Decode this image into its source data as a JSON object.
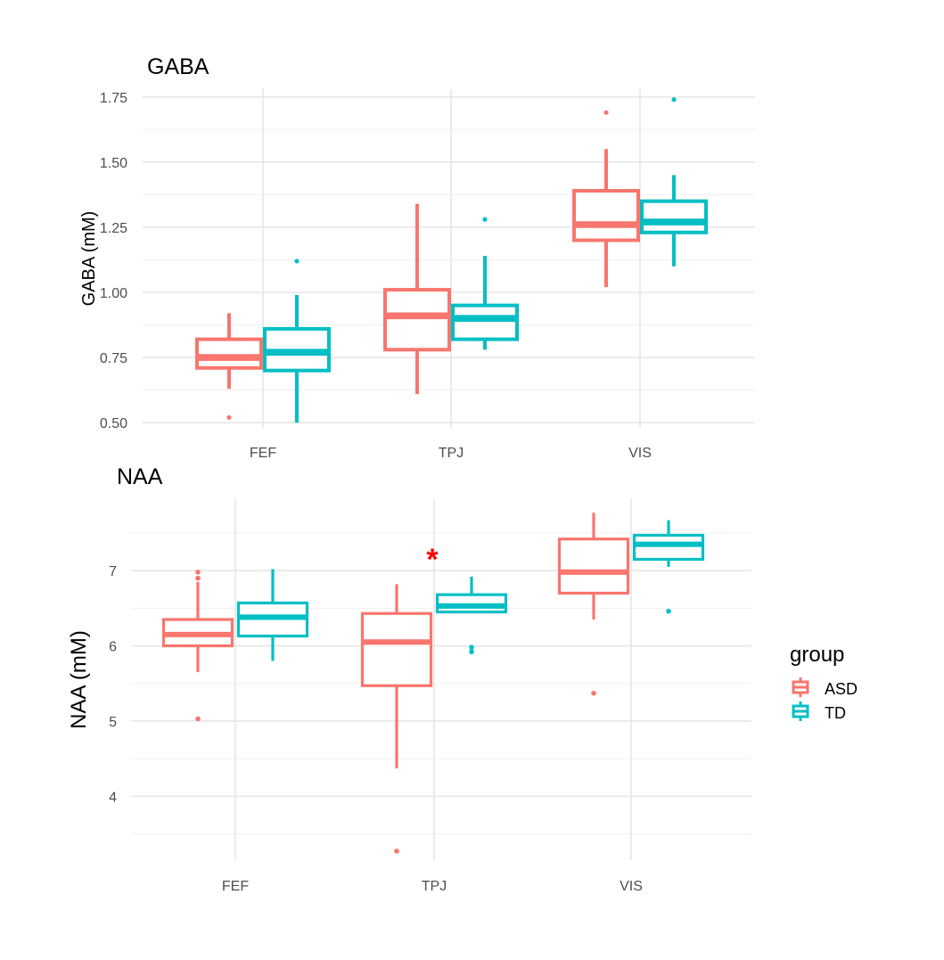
{
  "chart_data": [
    {
      "type": "box",
      "title": "GABA",
      "xlabel": "",
      "ylabel": "GABA (mM)",
      "categories": [
        "FEF",
        "TPJ",
        "VIS"
      ],
      "ylim": [
        0.48,
        1.78
      ],
      "yticks": [
        0.5,
        0.75,
        1.0,
        1.25,
        1.5,
        1.75
      ],
      "ytick_labels": [
        "0.50",
        "0.75",
        "1.00",
        "1.25",
        "1.50",
        "1.75"
      ],
      "series": [
        {
          "name": "ASD",
          "boxes": [
            {
              "category": "FEF",
              "whisker_low": 0.63,
              "q1": 0.71,
              "median": 0.75,
              "q3": 0.82,
              "whisker_high": 0.92,
              "outliers": [
                0.52
              ]
            },
            {
              "category": "TPJ",
              "whisker_low": 0.61,
              "q1": 0.78,
              "median": 0.91,
              "q3": 1.01,
              "whisker_high": 1.34,
              "outliers": []
            },
            {
              "category": "VIS",
              "whisker_low": 1.02,
              "q1": 1.2,
              "median": 1.26,
              "q3": 1.39,
              "whisker_high": 1.55,
              "outliers": [
                1.69
              ]
            }
          ]
        },
        {
          "name": "TD",
          "boxes": [
            {
              "category": "FEF",
              "whisker_low": 0.5,
              "q1": 0.7,
              "median": 0.77,
              "q3": 0.86,
              "whisker_high": 0.99,
              "outliers": [
                1.12
              ]
            },
            {
              "category": "TPJ",
              "whisker_low": 0.78,
              "q1": 0.82,
              "median": 0.9,
              "q3": 0.95,
              "whisker_high": 1.14,
              "outliers": [
                1.28
              ]
            },
            {
              "category": "VIS",
              "whisker_low": 1.1,
              "q1": 1.23,
              "median": 1.27,
              "q3": 1.35,
              "whisker_high": 1.45,
              "outliers": [
                1.74
              ]
            }
          ]
        }
      ],
      "annotations": []
    },
    {
      "type": "box",
      "title": "NAA",
      "xlabel": "",
      "ylabel": "NAA (mM)",
      "categories": [
        "FEF",
        "TPJ",
        "VIS"
      ],
      "ylim": [
        3.15,
        7.95
      ],
      "yticks": [
        4,
        5,
        6,
        7
      ],
      "ytick_labels": [
        "4",
        "5",
        "6",
        "7"
      ],
      "series": [
        {
          "name": "ASD",
          "boxes": [
            {
              "category": "FEF",
              "whisker_low": 5.65,
              "q1": 6.0,
              "median": 6.15,
              "q3": 6.35,
              "whisker_high": 6.85,
              "outliers": [
                6.9,
                6.98,
                5.03
              ]
            },
            {
              "category": "TPJ",
              "whisker_low": 4.37,
              "q1": 5.47,
              "median": 6.05,
              "q3": 6.43,
              "whisker_high": 6.82,
              "outliers": [
                3.27
              ]
            },
            {
              "category": "VIS",
              "whisker_low": 6.35,
              "q1": 6.7,
              "median": 6.98,
              "q3": 7.42,
              "whisker_high": 7.77,
              "outliers": [
                5.37
              ]
            }
          ]
        },
        {
          "name": "TD",
          "boxes": [
            {
              "category": "FEF",
              "whisker_low": 5.8,
              "q1": 6.13,
              "median": 6.38,
              "q3": 6.57,
              "whisker_high": 7.02,
              "outliers": []
            },
            {
              "category": "TPJ",
              "whisker_low": 6.45,
              "q1": 6.45,
              "median": 6.53,
              "q3": 6.68,
              "whisker_high": 6.92,
              "outliers": [
                5.92,
                5.98
              ]
            },
            {
              "category": "VIS",
              "whisker_low": 7.05,
              "q1": 7.15,
              "median": 7.35,
              "q3": 7.47,
              "whisker_high": 7.67,
              "outliers": [
                6.46
              ]
            }
          ]
        }
      ],
      "annotations": [
        {
          "text": "*",
          "category": "TPJ",
          "y": 7.25,
          "color": "#ff0000"
        }
      ]
    }
  ],
  "legend": {
    "title": "group",
    "items": [
      {
        "label": "ASD",
        "color": "#f8766d"
      },
      {
        "label": "TD",
        "color": "#00bfc4"
      }
    ]
  },
  "colors": {
    "ASD": "#f8766d",
    "TD": "#00bfc4",
    "annotation": "#ff0000"
  }
}
